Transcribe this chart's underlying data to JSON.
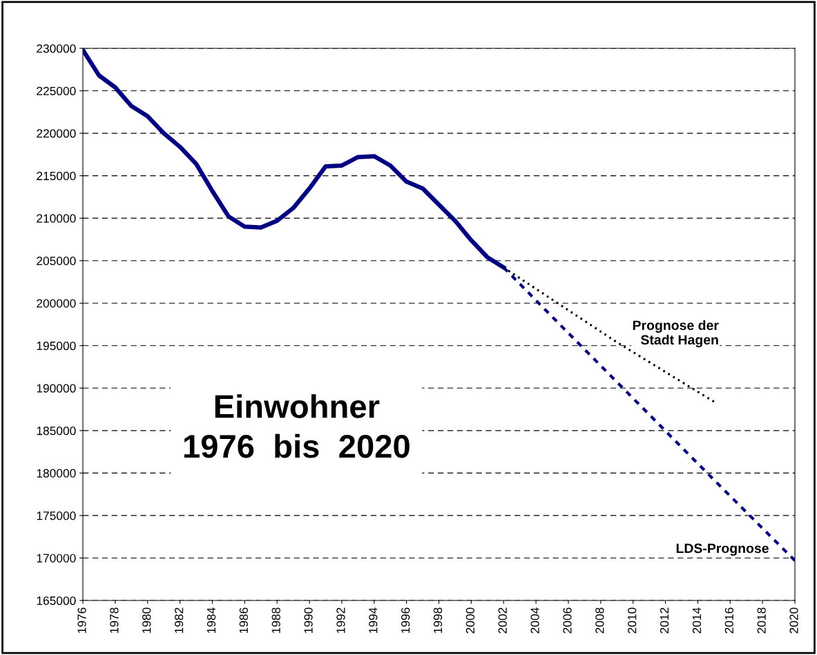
{
  "chart_data": {
    "type": "line",
    "title": "Einwohner\n1976  bis  2020",
    "xlim": [
      1976,
      2020
    ],
    "xticks": [
      1976,
      1978,
      1980,
      1982,
      1984,
      1986,
      1988,
      1990,
      1992,
      1994,
      1996,
      1998,
      2000,
      2002,
      2004,
      2006,
      2008,
      2010,
      2012,
      2014,
      2016,
      2018,
      2020
    ],
    "ylim": [
      165000,
      230000
    ],
    "yticks": [
      165000,
      170000,
      175000,
      180000,
      185000,
      190000,
      195000,
      200000,
      205000,
      210000,
      215000,
      220000,
      225000,
      230000
    ],
    "grid": "y",
    "legend": false,
    "marker": "none",
    "series": [
      {
        "color": "#000080",
        "line_style": "solid",
        "x": [
          1976,
          1977,
          1978,
          1979,
          1980,
          1981,
          1982,
          1983,
          1984,
          1985,
          1986,
          1987,
          1988,
          1989,
          1990,
          1991,
          1992,
          1993,
          1994,
          1995,
          1996,
          1997,
          1998,
          1999,
          2000,
          2001,
          2002
        ],
        "values": [
          229800,
          226800,
          225400,
          223200,
          222000,
          220000,
          218400,
          216400,
          213200,
          210200,
          209000,
          208900,
          209700,
          211200,
          213500,
          216100,
          216200,
          217200,
          217300,
          216200,
          214300,
          213500,
          211600,
          209700,
          207400,
          205400,
          204200
        ]
      },
      {
        "name": "Prognose der\nStadt Hagen",
        "color": "#000000",
        "line_style": "dotted",
        "x": [
          2002,
          2009,
          2015
        ],
        "values": [
          204200,
          195400,
          188400
        ]
      },
      {
        "name": "LDS-Prognose",
        "color": "#000080",
        "line_style": "dashed",
        "x": [
          2002,
          2005,
          2010,
          2015,
          2020
        ],
        "values": [
          204200,
          198400,
          188800,
          179200,
          169700
        ]
      }
    ]
  }
}
